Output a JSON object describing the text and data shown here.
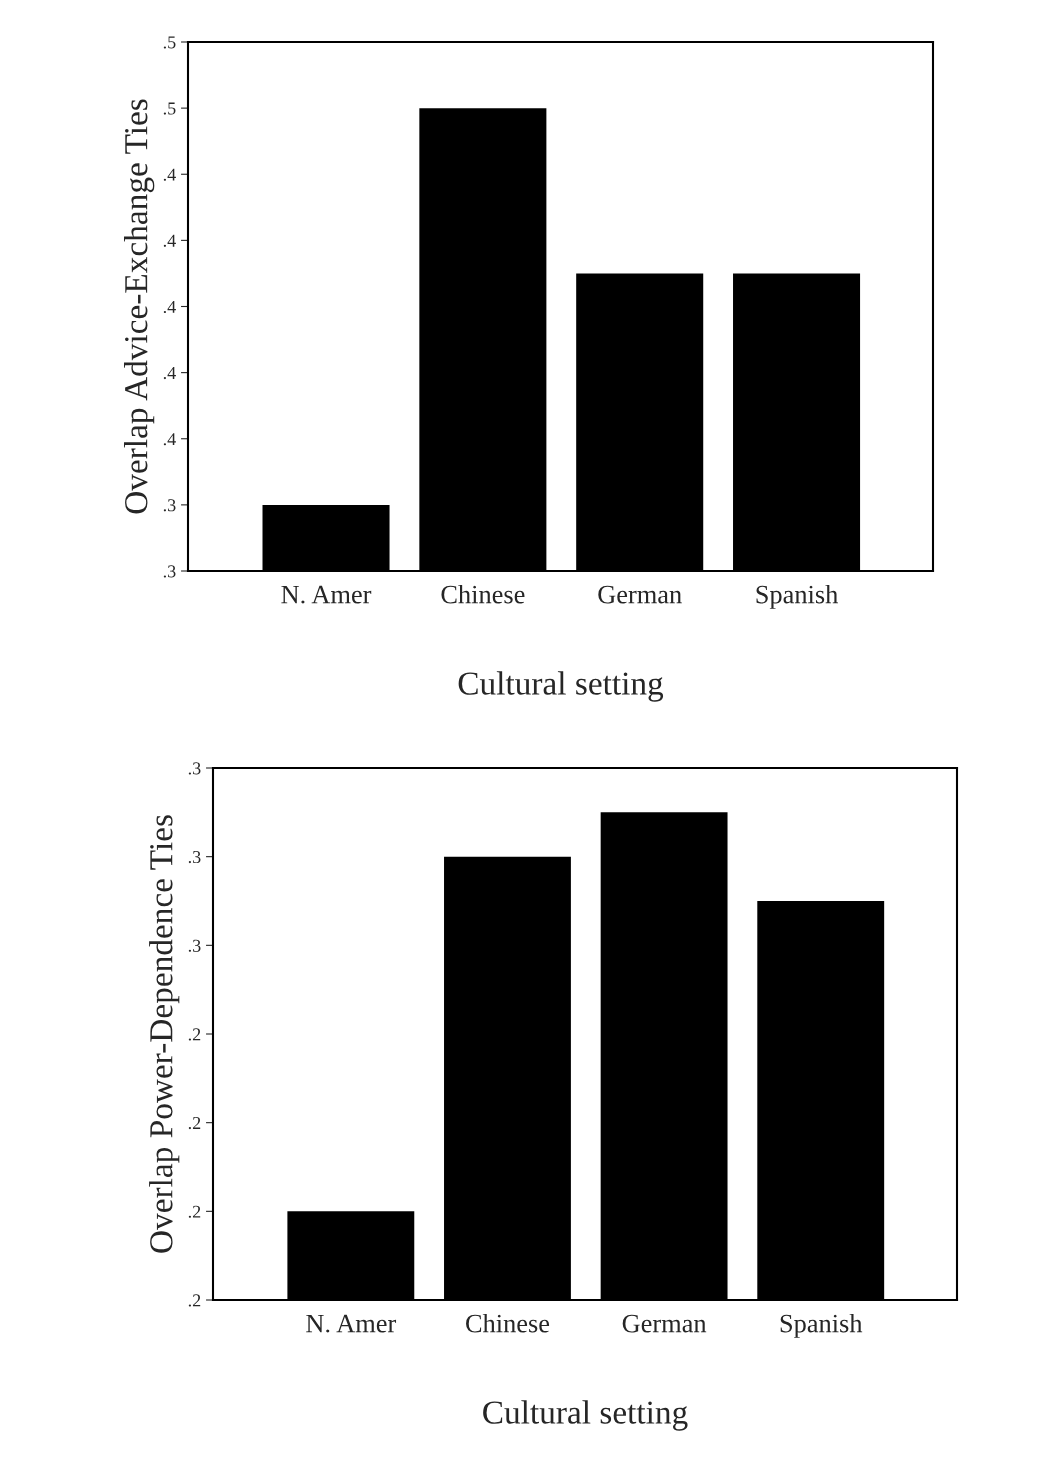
{
  "chart_data": [
    {
      "type": "bar",
      "xlabel": "Cultural setting",
      "ylabel": "Overlap Advice-Exchange Ties",
      "categories": [
        "N. Amer",
        "Chinese",
        "German",
        "Spanish"
      ],
      "values": [
        0.33,
        0.45,
        0.4,
        0.4
      ],
      "color": "#000000",
      "ylim": [
        0.31,
        0.47
      ],
      "yticks": [
        {
          "value": 0.31,
          "label": ".3"
        },
        {
          "value": 0.33,
          "label": ".3"
        },
        {
          "value": 0.35,
          "label": ".4"
        },
        {
          "value": 0.37,
          "label": ".4"
        },
        {
          "value": 0.39,
          "label": ".4"
        },
        {
          "value": 0.41,
          "label": ".4"
        },
        {
          "value": 0.43,
          "label": ".4"
        },
        {
          "value": 0.45,
          "label": ".5"
        },
        {
          "value": 0.47,
          "label": ".5"
        }
      ],
      "grid": false
    },
    {
      "type": "bar",
      "xlabel": "Cultural setting",
      "ylabel": "Overlap Power-Dependence Ties",
      "categories": [
        "N. Amer",
        "Chinese",
        "German",
        "Spanish"
      ],
      "values": [
        0.19,
        0.27,
        0.28,
        0.26
      ],
      "color": "#000000",
      "ylim": [
        0.17,
        0.29
      ],
      "yticks": [
        {
          "value": 0.17,
          "label": ".2"
        },
        {
          "value": 0.19,
          "label": ".2"
        },
        {
          "value": 0.21,
          "label": ".2"
        },
        {
          "value": 0.23,
          "label": ".2"
        },
        {
          "value": 0.25,
          "label": ".3"
        },
        {
          "value": 0.27,
          "label": ".3"
        },
        {
          "value": 0.29,
          "label": ".3"
        }
      ],
      "grid": false
    }
  ]
}
